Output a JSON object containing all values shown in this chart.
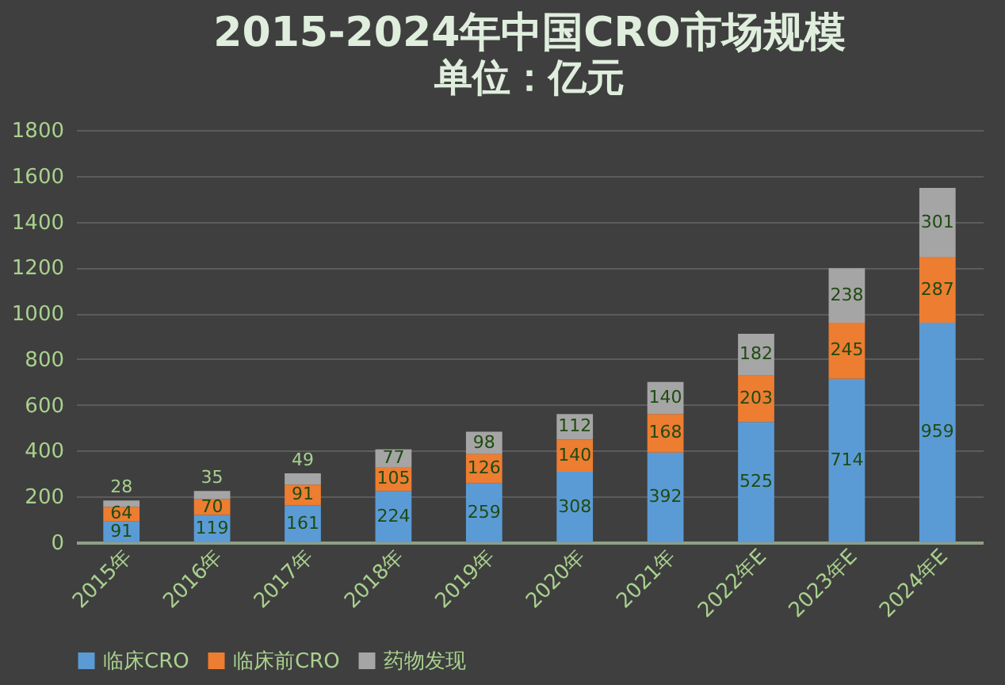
{
  "chart_data": {
    "type": "bar",
    "title": "2015-2024年中国CRO市场规模",
    "subtitle": "单位：亿元",
    "categories": [
      "2015年",
      "2016年",
      "2017年",
      "2018年",
      "2019年",
      "2020年",
      "2021年",
      "2022年E",
      "2023年E",
      "2024年E"
    ],
    "stacked": true,
    "data_labels": true,
    "grid": "y",
    "legend": "bottom",
    "ylim": [
      0,
      1800
    ],
    "yticks": [
      0,
      200,
      400,
      600,
      800,
      1000,
      1200,
      1400,
      1600,
      1800
    ],
    "series": [
      {
        "name": "临床CRO",
        "color": "#5b9bd5",
        "values": [
          91,
          119,
          161,
          224,
          259,
          308,
          392,
          525,
          714,
          959
        ]
      },
      {
        "name": "临床前CRO",
        "color": "#ed7d31",
        "values": [
          64,
          70,
          91,
          105,
          126,
          140,
          168,
          203,
          245,
          287
        ]
      },
      {
        "name": "药物发现",
        "color": "#a5a5a5",
        "values": [
          28,
          35,
          49,
          77,
          98,
          112,
          140,
          182,
          238,
          301
        ]
      }
    ]
  }
}
